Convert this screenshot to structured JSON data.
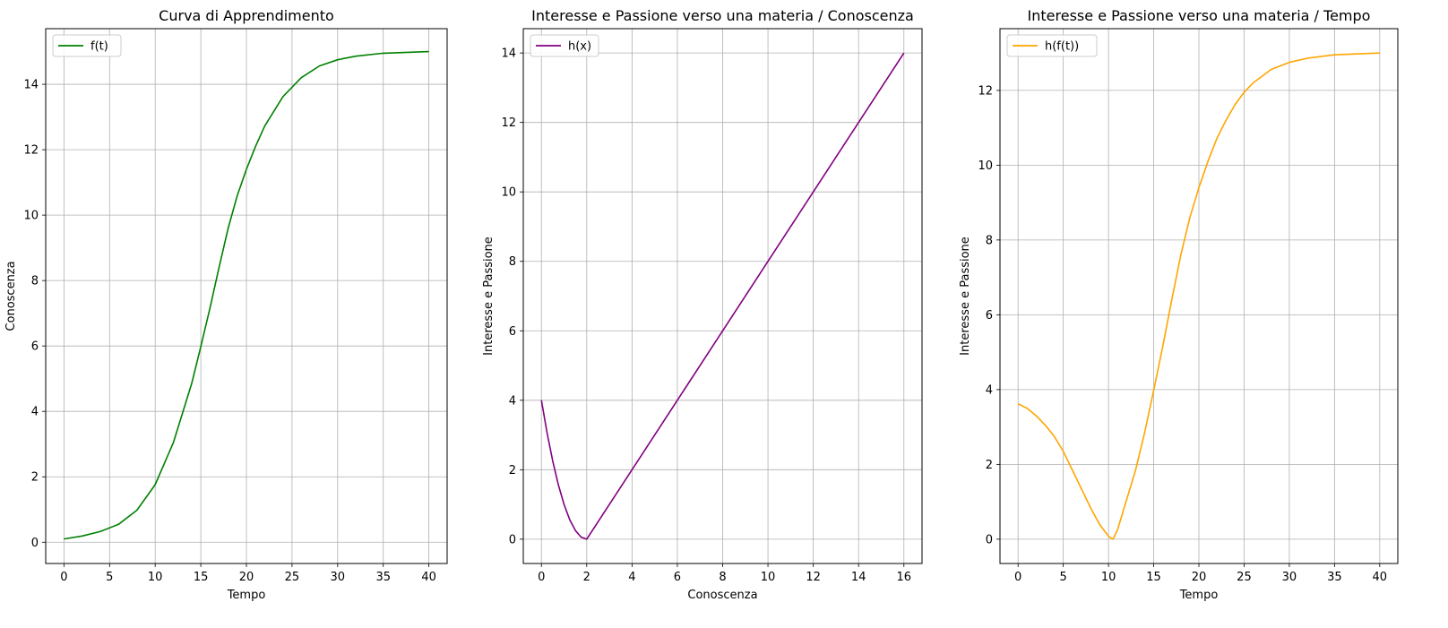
{
  "chart_data": [
    {
      "type": "line",
      "title": "Curva di Apprendimento",
      "xlabel": "Tempo",
      "ylabel": "Conoscenza",
      "xlim": [
        -2,
        42
      ],
      "ylim": [
        -0.65,
        15.7
      ],
      "xticks": [
        0,
        5,
        10,
        15,
        20,
        25,
        30,
        35,
        40
      ],
      "yticks": [
        0,
        2,
        4,
        6,
        8,
        10,
        12,
        14
      ],
      "grid": true,
      "legend_position": "upper left",
      "series": [
        {
          "name": "f(t)",
          "color": "#008000",
          "x": [
            0,
            2,
            4,
            6,
            8,
            10,
            12,
            14,
            15,
            16,
            17,
            18,
            19,
            20,
            21,
            22,
            24,
            26,
            28,
            30,
            32,
            35,
            38,
            40
          ],
          "y": [
            0.1,
            0.19,
            0.33,
            0.55,
            0.98,
            1.76,
            3.05,
            4.85,
            5.98,
            7.15,
            8.4,
            9.6,
            10.6,
            11.4,
            12.1,
            12.72,
            13.62,
            14.2,
            14.56,
            14.75,
            14.86,
            14.95,
            14.98,
            15.0
          ]
        }
      ]
    },
    {
      "type": "line",
      "title": "Interesse e Passione verso una materia / Conoscenza",
      "xlabel": "Conoscenza",
      "ylabel": "Interesse e Passione",
      "xlim": [
        -0.8,
        16.8
      ],
      "ylim": [
        -0.7,
        14.7
      ],
      "xticks": [
        0,
        2,
        4,
        6,
        8,
        10,
        12,
        14,
        16
      ],
      "yticks": [
        0,
        2,
        4,
        6,
        8,
        10,
        12,
        14
      ],
      "grid": true,
      "legend_position": "upper left",
      "series": [
        {
          "name": "h(x)",
          "color": "#800080",
          "x": [
            0,
            0.25,
            0.5,
            0.75,
            1,
            1.25,
            1.5,
            1.75,
            2,
            4,
            6,
            8,
            10,
            12,
            14,
            16
          ],
          "y": [
            4,
            3.06,
            2.25,
            1.56,
            1.0,
            0.56,
            0.25,
            0.06,
            0,
            2,
            4,
            6,
            8,
            10,
            12,
            14
          ]
        }
      ]
    },
    {
      "type": "line",
      "title": "Interesse e Passione verso una materia / Tempo",
      "xlabel": "Tempo",
      "ylabel": "Interesse e Passione",
      "xlim": [
        -2,
        42
      ],
      "ylim": [
        -0.65,
        13.65
      ],
      "xticks": [
        0,
        5,
        10,
        15,
        20,
        25,
        30,
        35,
        40
      ],
      "yticks": [
        0,
        2,
        4,
        6,
        8,
        10,
        12
      ],
      "grid": true,
      "legend_position": "upper left",
      "series": [
        {
          "name": "h(f(t))",
          "color": "#FFA500",
          "x": [
            0,
            1,
            2,
            3,
            4,
            5,
            6,
            7,
            8,
            9,
            10,
            10.5,
            11,
            12,
            13,
            14,
            15,
            16,
            17,
            18,
            19,
            20,
            21,
            22,
            23,
            24,
            25,
            26,
            28,
            30,
            32,
            35,
            38,
            40
          ],
          "y": [
            3.62,
            3.5,
            3.3,
            3.05,
            2.75,
            2.35,
            1.85,
            1.35,
            0.85,
            0.4,
            0.08,
            0,
            0.25,
            1.05,
            1.85,
            2.85,
            3.98,
            5.15,
            6.4,
            7.6,
            8.6,
            9.4,
            10.1,
            10.72,
            11.2,
            11.62,
            11.95,
            12.2,
            12.56,
            12.75,
            12.86,
            12.95,
            12.98,
            13.0
          ]
        }
      ]
    }
  ]
}
